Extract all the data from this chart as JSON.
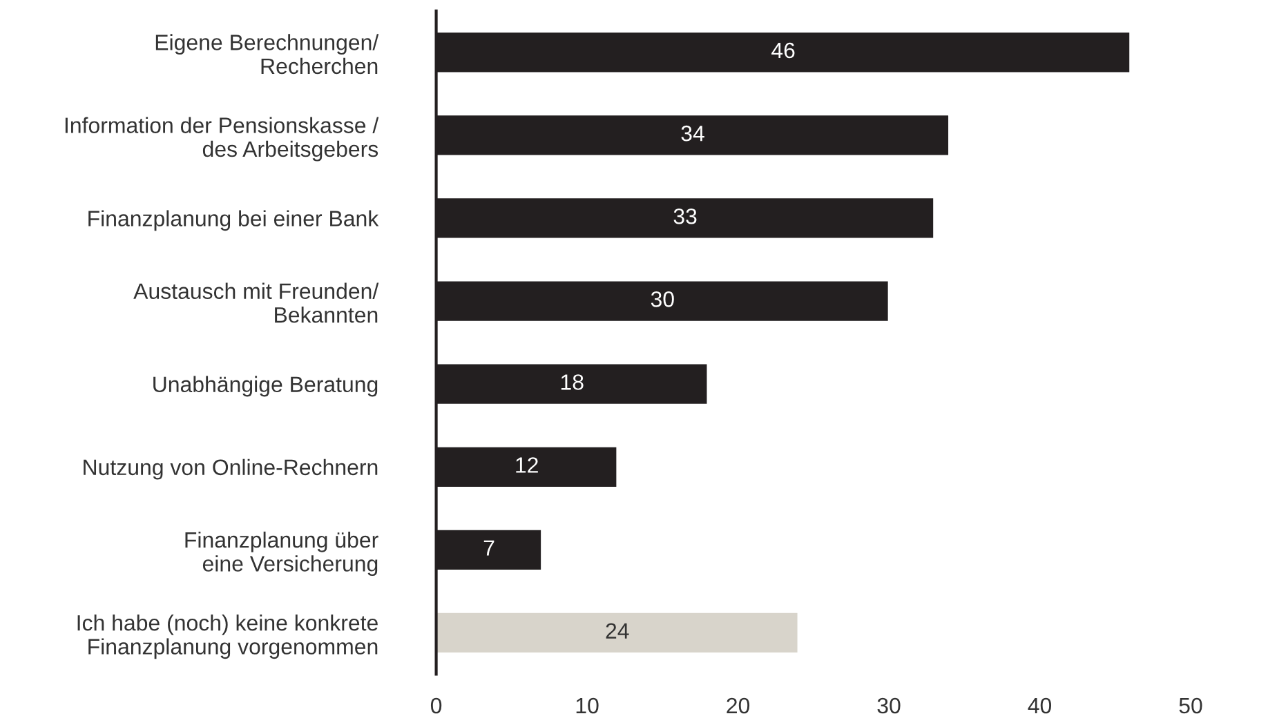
{
  "chart_data": {
    "type": "bar",
    "orientation": "horizontal",
    "categories": [
      "Eigene Berechnungen/\nRecherchen",
      "Information der Pensionskasse /\ndes Arbeitsgebers",
      "Finanzplanung bei einer Bank",
      "Austausch mit Freunden/\nBekannten",
      "Unabhängige Beratung",
      "Nutzung von Online-Rechnern",
      "Finanzplanung über\neine Versicherung",
      "Ich habe (noch) keine konkrete\nFinanzplanung vorgenommen"
    ],
    "values": [
      46,
      34,
      33,
      30,
      18,
      12,
      7,
      24
    ],
    "colors": [
      "#231f20",
      "#231f20",
      "#231f20",
      "#231f20",
      "#231f20",
      "#231f20",
      "#231f20",
      "#d8d4cb"
    ],
    "xlim": [
      0,
      50
    ],
    "xticks": [
      0,
      10,
      20,
      30,
      40,
      50
    ],
    "data_labels": true,
    "grid": false,
    "legend": false
  }
}
